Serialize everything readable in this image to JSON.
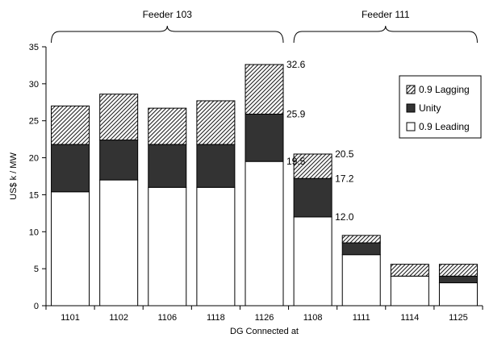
{
  "chart_data": {
    "type": "bar",
    "stacked": true,
    "categories": [
      "1101",
      "1102",
      "1106",
      "1118",
      "1126",
      "1108",
      "1111",
      "1114",
      "1125"
    ],
    "series": [
      {
        "name": "0.9 Leading",
        "values": [
          15.4,
          17.0,
          16.0,
          16.0,
          19.5,
          12.0,
          6.9,
          4.0,
          3.1
        ],
        "color": "#ffffff",
        "pattern": "solid"
      },
      {
        "name": "Unity",
        "values": [
          6.4,
          5.4,
          5.8,
          5.8,
          6.4,
          5.2,
          1.6,
          0.0,
          0.9
        ],
        "color": "#333333",
        "pattern": "solid"
      },
      {
        "name": "0.9 Lagging",
        "values": [
          5.2,
          6.2,
          4.9,
          5.9,
          6.7,
          3.3,
          1.0,
          1.6,
          1.6
        ],
        "color": "#ffffff",
        "pattern": "diagonal-hatch"
      }
    ],
    "xlabel": "DG Connected at",
    "ylabel": "US$ k / MW",
    "ylim": [
      0,
      35
    ],
    "yticks": [
      "0",
      "5",
      "10",
      "15",
      "20",
      "25",
      "30",
      "35"
    ],
    "grid": false,
    "legend_position": "right",
    "legend_order": [
      "0.9 Lagging",
      "Unity",
      "0.9 Leading"
    ],
    "groups": [
      {
        "label": "Feeder 103",
        "categories": [
          "1101",
          "1102",
          "1106",
          "1118",
          "1126"
        ]
      },
      {
        "label": "Feeder 111",
        "categories": [
          "1108",
          "1111",
          "1114",
          "1125"
        ]
      }
    ],
    "annotations": [
      {
        "category": "1126",
        "text": "32.6",
        "value": 32.6
      },
      {
        "category": "1126",
        "text": "25.9",
        "value": 25.9
      },
      {
        "category": "1126",
        "text": "19.5",
        "value": 19.5
      },
      {
        "category": "1108",
        "text": "20.5",
        "value": 20.5
      },
      {
        "category": "1108",
        "text": "17.2",
        "value": 17.2
      },
      {
        "category": "1108",
        "text": "12.0",
        "value": 12.0
      }
    ]
  }
}
